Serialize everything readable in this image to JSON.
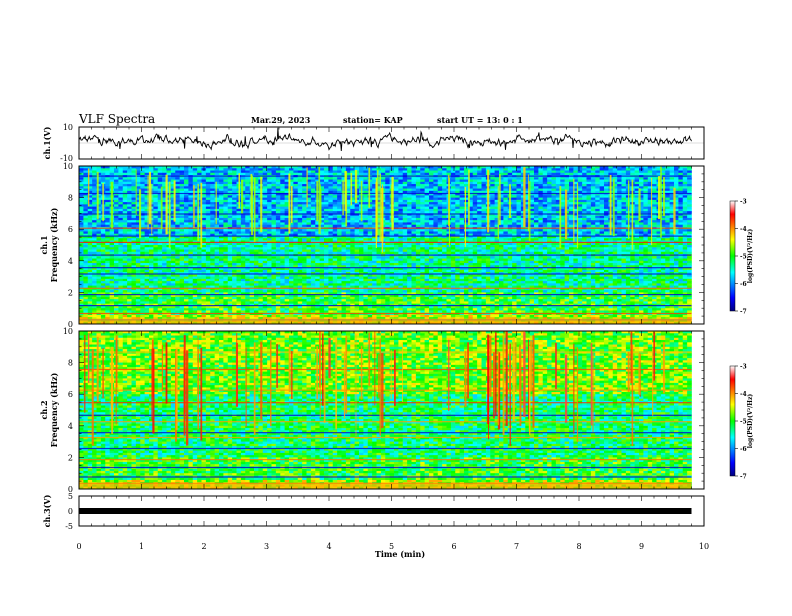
{
  "header": {
    "title": "VLF Spectra",
    "date": "Mar.29, 2023",
    "station": "station= KAP",
    "start": "start  UT  =  13: 0  : 1"
  },
  "chart_data": [
    {
      "name": "ch1-waveform",
      "type": "line",
      "ylabel": "ch.1(V)",
      "ylim": [
        -10,
        10
      ],
      "yticks": [
        "10",
        "-10"
      ],
      "xlim": [
        0,
        10
      ],
      "x_extent": 9.8,
      "description_values": {
        "mean": 1.5,
        "amplitude": 5
      }
    },
    {
      "name": "ch1-spectrogram",
      "type": "heatmap",
      "ylabel": "ch.1\nFrequency  (kHz)",
      "ylabel_lines": [
        "ch.1",
        "Frequency  (kHz)"
      ],
      "ylim": [
        0,
        10
      ],
      "yticks": [
        "0",
        "2",
        "4",
        "6",
        "8",
        "10"
      ],
      "xlim": [
        0,
        10
      ],
      "x_extent": 9.8,
      "colorbar": {
        "label": "log(PSD)(V²/Hz)",
        "range": [
          -7,
          -3
        ],
        "ticks": [
          "-3",
          "-4",
          "-5",
          "-6",
          "-7"
        ]
      }
    },
    {
      "name": "ch2-spectrogram",
      "type": "heatmap",
      "ylabel_lines": [
        "ch.2",
        "Frequency  (kHz)"
      ],
      "ylim": [
        0,
        10
      ],
      "yticks": [
        "0",
        "2",
        "4",
        "6",
        "8",
        "10"
      ],
      "xlim": [
        0,
        10
      ],
      "x_extent": 9.8,
      "colorbar": {
        "label": "log(PSD)(V²/Hz)",
        "range": [
          -7,
          -3
        ],
        "ticks": [
          "-3",
          "-4",
          "-5",
          "-6",
          "-7"
        ]
      }
    },
    {
      "name": "ch3-timing",
      "type": "line",
      "ylabel": "ch.3(V)",
      "ylim": [
        -5,
        5
      ],
      "yticks": [
        "5",
        "0",
        "-5"
      ],
      "xlim": [
        0,
        10
      ],
      "x_extent": 9.8,
      "xlabel": "Time  (min)",
      "xticks": [
        "0",
        "1",
        "2",
        "3",
        "4",
        "5",
        "6",
        "7",
        "8",
        "9",
        "10"
      ],
      "level": 0
    }
  ]
}
